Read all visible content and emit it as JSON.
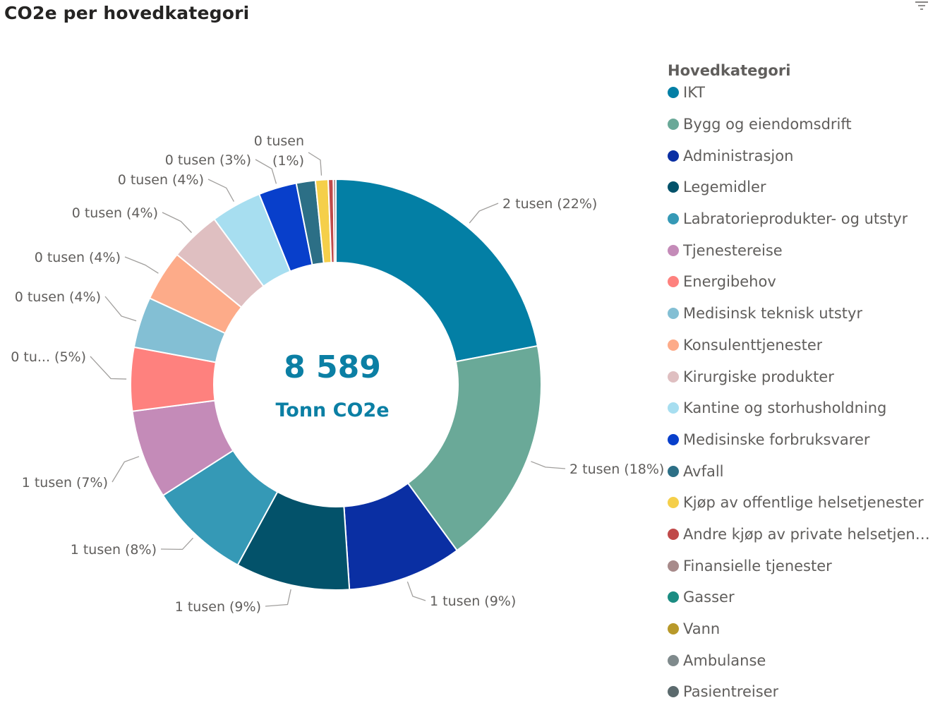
{
  "title": "CO2e per hovedkategori",
  "icons": {
    "filter": "filter-icon"
  },
  "center": {
    "value": "8 589",
    "unit": "Tonn CO2e",
    "color": "#0b7fa4"
  },
  "legend_title": "Hovedkategori",
  "chart_data": {
    "type": "donut",
    "title": "CO2e per hovedkategori",
    "total": 8589,
    "total_label": "Tonn CO2e",
    "legend_title": "Hovedkategori",
    "series": [
      {
        "name": "IKT",
        "percent": 22,
        "label": "2 tusen (22%)",
        "color": "#037fa5"
      },
      {
        "name": "Bygg og eiendomsdrift",
        "percent": 18,
        "label": "2 tusen (18%)",
        "color": "#6aa998"
      },
      {
        "name": "Administrasjon",
        "percent": 9,
        "label": "1 tusen (9%)",
        "color": "#0a2fa3"
      },
      {
        "name": "Legemidler",
        "percent": 9,
        "label": "1 tusen (9%)",
        "color": "#03526a"
      },
      {
        "name": "Labratorieprodukter- og utstyr",
        "percent": 8,
        "label": "1 tusen (8%)",
        "color": "#3599b6"
      },
      {
        "name": "Tjenestereise",
        "percent": 7,
        "label": "1 tusen (7%)",
        "color": "#c48bb8"
      },
      {
        "name": "Energibehov",
        "percent": 5,
        "label": "0 tu... (5%)",
        "color": "#fe817e"
      },
      {
        "name": "Medisinsk teknisk utstyr",
        "percent": 4,
        "label": "0 tusen (4%)",
        "color": "#83bfd4"
      },
      {
        "name": "Konsulenttjenester",
        "percent": 4,
        "label": "0 tusen (4%)",
        "color": "#fdab89"
      },
      {
        "name": "Kirurgiske produkter",
        "percent": 4,
        "label": "0 tusen (4%)",
        "color": "#dfbfc1"
      },
      {
        "name": "Kantine og storhusholdning",
        "percent": 4,
        "label": "0 tusen (4%)",
        "color": "#a7def0"
      },
      {
        "name": "Medisinske forbruksvarer",
        "percent": 3,
        "label": "0 tusen (3%)",
        "color": "#083fcb"
      },
      {
        "name": "Avfall",
        "percent": 1.5,
        "label": "",
        "color": "#2c6f86"
      },
      {
        "name": "Kjøp av offentlige helsetjenester",
        "percent": 1,
        "label_line1": "0 tusen",
        "label_line2": "(1%)",
        "label": "0 tusen (1%)",
        "color": "#f5cf4a"
      },
      {
        "name": "Andre kjøp av private helsetjenes...",
        "percent": 0.4,
        "label": "",
        "color": "#c04a4a"
      },
      {
        "name": "Finansielle tjenester",
        "percent": 0.2,
        "label": "",
        "color": "#a78a8a"
      },
      {
        "name": "Gasser",
        "percent": 0,
        "label": "",
        "color": "#1b8c82"
      },
      {
        "name": "Vann",
        "percent": 0,
        "label": "",
        "color": "#b8992a"
      },
      {
        "name": "Ambulanse",
        "percent": 0,
        "label": "",
        "color": "#7f8a8c"
      },
      {
        "name": "Pasientreiser",
        "percent": 0,
        "label": "",
        "color": "#5b6a6d"
      }
    ]
  }
}
